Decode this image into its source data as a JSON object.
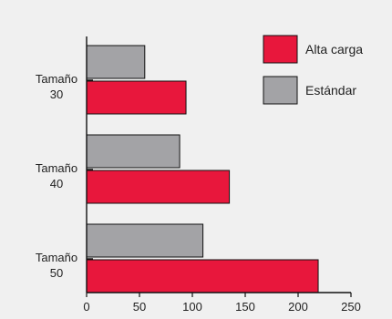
{
  "chart_data": {
    "type": "bar",
    "orientation": "horizontal",
    "categories": [
      {
        "line1": "Tamaño",
        "line2": "30"
      },
      {
        "line1": "Tamaño",
        "line2": "40"
      },
      {
        "line1": "Tamaño",
        "line2": "50"
      }
    ],
    "series": [
      {
        "name": "Estándar",
        "color": "#a3a3a6",
        "values": [
          55,
          88,
          110
        ]
      },
      {
        "name": "Alta carga",
        "color": "#e8173c",
        "values": [
          94,
          135,
          219
        ]
      }
    ],
    "xlim": [
      0,
      250
    ],
    "xticks": [
      "0",
      "50",
      "100",
      "150",
      "200",
      "250"
    ],
    "legend_position": "top-right",
    "legend": [
      {
        "label": "Alta carga",
        "color": "#e8173c"
      },
      {
        "label": "Estándar",
        "color": "#a3a3a6"
      }
    ],
    "grid": false
  }
}
